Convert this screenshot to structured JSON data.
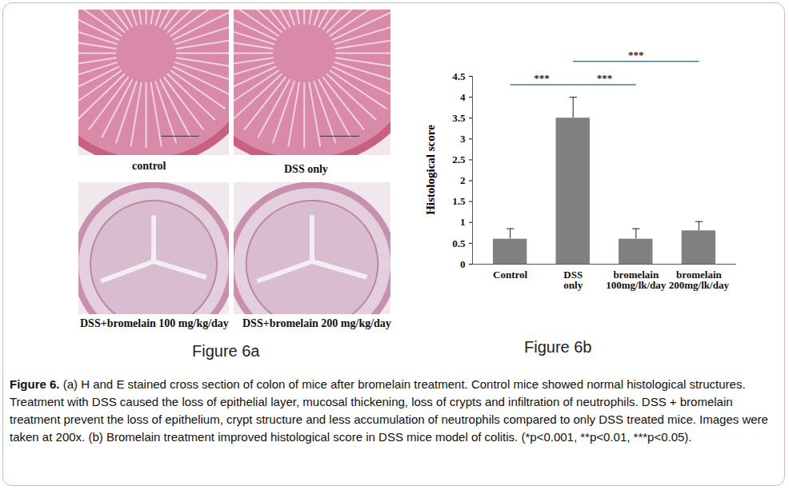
{
  "panels": {
    "title": "Figure 6a",
    "images": [
      "control",
      "DSS only",
      "DSS+bromelain 100 mg/kg/day",
      "DSS+bromelain 200 mg/kg/day"
    ]
  },
  "chart_data": {
    "type": "bar",
    "title": "Figure 6b",
    "y_label": "Histological score",
    "categories": [
      "Control",
      "DSS only",
      "bromelain 100mg/lk/day",
      "bromelain 200mg/lk/day"
    ],
    "values": [
      0.6,
      3.5,
      0.6,
      0.8
    ],
    "errors": [
      0.25,
      0.5,
      0.25,
      0.22
    ],
    "color": "#808080",
    "ylim": [
      0,
      4.5
    ],
    "yticks": [
      0,
      0.5,
      1,
      1.5,
      2,
      2.5,
      3,
      3.5,
      4,
      4.5
    ],
    "grid": false,
    "comparisons": [
      {
        "from": "Control",
        "to": "DSS only",
        "label": "***"
      },
      {
        "from": "DSS only",
        "to": "bromelain 100mg/lk/day",
        "label": "***"
      },
      {
        "from": "DSS only",
        "to": "bromelain 200mg/lk/day",
        "label": "***"
      }
    ]
  },
  "caption": {
    "title": "Figure 6.",
    "text": "(a) H and E stained cross section of colon of mice after bromelain treatment. Control mice showed normal histological structures. Treatment with DSS caused the loss of epithelial layer, mucosal thickening, loss of crypts and infiltration of neutrophils. DSS + bromelain treatment prevent the loss of epithelium, crypt structure and less accumulation of neutrophils compared to only DSS treated mice. Images were taken at 200x. (b) Bromelain treatment improved histological score in DSS mice model of colitis. (*p<0.001, **p<0.01, ***p<0.05)."
  }
}
